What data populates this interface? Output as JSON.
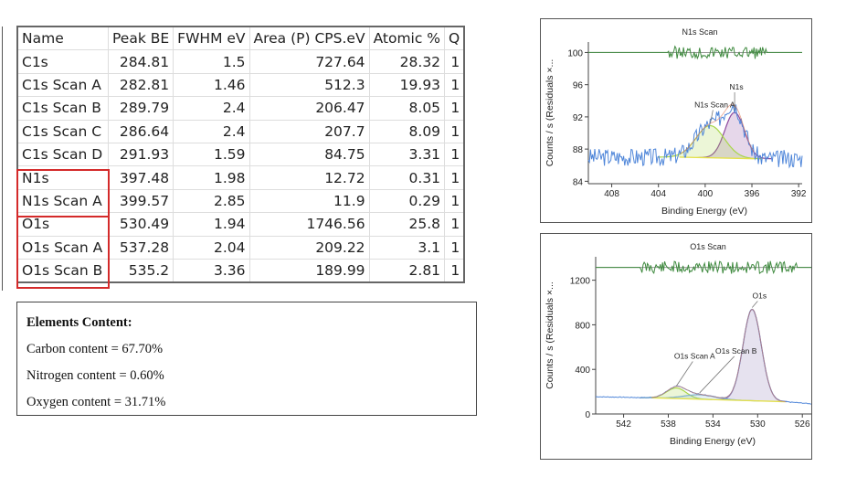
{
  "table": {
    "headers": [
      "Name",
      "Peak BE",
      "FWHM eV",
      "Area (P) CPS.eV",
      "Atomic %",
      "Q"
    ],
    "rows": [
      [
        "C1s",
        "284.81",
        "1.5",
        "727.64",
        "28.32",
        "1"
      ],
      [
        "C1s Scan A",
        "282.81",
        "1.46",
        "512.3",
        "19.93",
        "1"
      ],
      [
        "C1s Scan B",
        "289.79",
        "2.4",
        "206.47",
        "8.05",
        "1"
      ],
      [
        "C1s Scan C",
        "286.64",
        "2.4",
        "207.7",
        "8.09",
        "1"
      ],
      [
        "C1s Scan D",
        "291.93",
        "1.59",
        "84.75",
        "3.31",
        "1"
      ],
      [
        "N1s",
        "397.48",
        "1.98",
        "12.72",
        "0.31",
        "1"
      ],
      [
        "N1s Scan A",
        "399.57",
        "2.85",
        "11.9",
        "0.29",
        "1"
      ],
      [
        "O1s",
        "530.49",
        "1.94",
        "1746.56",
        "25.8",
        "1"
      ],
      [
        "O1s Scan A",
        "537.28",
        "2.04",
        "209.22",
        "3.1",
        "1"
      ],
      [
        "O1s Scan B",
        "535.2",
        "3.36",
        "189.99",
        "2.81",
        "1"
      ]
    ],
    "highlight_color": "#d42a2a"
  },
  "elements": {
    "title": "Elements Content:",
    "lines": [
      "Carbon content = 67.70%",
      "Nitrogen content = 0.60%",
      "Oxygen content = 31.71%"
    ]
  },
  "chart_data": [
    {
      "type": "line",
      "title": "N1s Scan",
      "xlabel": "Binding Energy (eV)",
      "ylabel": "Counts / s  (Residuals ×...",
      "xlim": [
        410,
        391.7
      ],
      "ylim": [
        83.7,
        101.3
      ],
      "xticks": [
        "408",
        "404",
        "400",
        "396",
        "392"
      ],
      "yticks": [
        "84",
        "88",
        "92",
        "96",
        "100"
      ],
      "residual_level": 100,
      "baseline": [
        [
          402.2,
          87
        ],
        [
          395.8,
          86.8
        ]
      ],
      "peaks": [
        {
          "name": "N1s",
          "center": 397.48,
          "fwhm": 1.98,
          "height": 5.7,
          "color": "#8e4a9e"
        },
        {
          "name": "N1s Scan A",
          "center": 399.57,
          "fwhm": 2.85,
          "height": 4.0,
          "color": "#a8d64a"
        }
      ],
      "series_colors": {
        "raw": "#4f86d9",
        "envelope": "#e07a5a",
        "residual": "#3f8a3f",
        "baseline": "#e3e04a"
      }
    },
    {
      "type": "line",
      "title": "O1s Scan",
      "xlabel": "Binding Energy (eV)",
      "ylabel": "Counts / s  (Residuals ×...",
      "xlim": [
        544.5,
        525.2
      ],
      "ylim": [
        0,
        1410
      ],
      "xticks": [
        "542",
        "538",
        "534",
        "530",
        "526"
      ],
      "yticks": [
        "0",
        "400",
        "800",
        "1200"
      ],
      "residual_level": 1315,
      "baseline": [
        [
          539.5,
          145
        ],
        [
          527.5,
          110
        ]
      ],
      "peaks": [
        {
          "name": "O1s",
          "center": 530.49,
          "fwhm": 1.94,
          "height": 820,
          "color": "#8e7ab8"
        },
        {
          "name": "O1s Scan A",
          "center": 537.28,
          "fwhm": 2.04,
          "height": 95,
          "color": "#a8d64a"
        },
        {
          "name": "O1s Scan B",
          "center": 535.2,
          "fwhm": 3.36,
          "height": 40,
          "color": "#7fb0c8"
        }
      ],
      "series_colors": {
        "raw": "#4f86d9",
        "envelope": "#e07a5a",
        "residual": "#3f8a3f",
        "baseline": "#e3e04a"
      }
    }
  ]
}
